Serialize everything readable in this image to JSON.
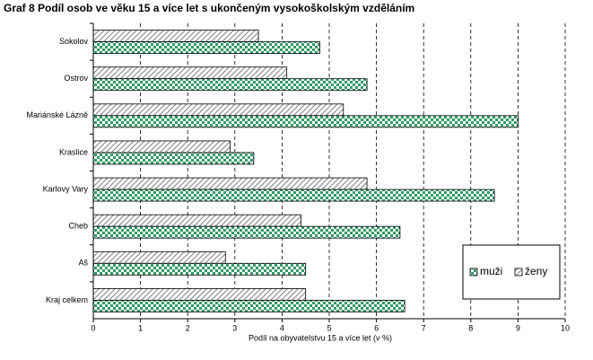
{
  "chart_data": {
    "type": "barh",
    "title": "Graf 8  Podíl osob ve věku 15 a více let s ukončeným vysokoškolským vzděláním",
    "x_label": "Podíl na obyvatelstvu 15 a více let (v %)",
    "categories": [
      "Sokolov",
      "Ostrov",
      "Mariánské Lázně",
      "Kraslice",
      "Karlovy Vary",
      "Cheb",
      "Aš",
      "Kraj celkem"
    ],
    "series": [
      {
        "name": "muži",
        "color": "#339966",
        "pattern": "checker",
        "values": [
          4.8,
          5.8,
          9.0,
          3.4,
          8.5,
          6.5,
          4.5,
          6.6
        ]
      },
      {
        "name": "ženy",
        "color": "#808080",
        "pattern": "hatch",
        "values": [
          3.5,
          4.1,
          5.3,
          2.9,
          5.8,
          4.4,
          2.8,
          4.5
        ]
      }
    ],
    "xlim": [
      0,
      10
    ],
    "xticks": [
      0,
      1,
      2,
      3,
      4,
      5,
      6,
      7,
      8,
      9,
      10
    ],
    "grid": true,
    "legend": "bottom-right"
  }
}
